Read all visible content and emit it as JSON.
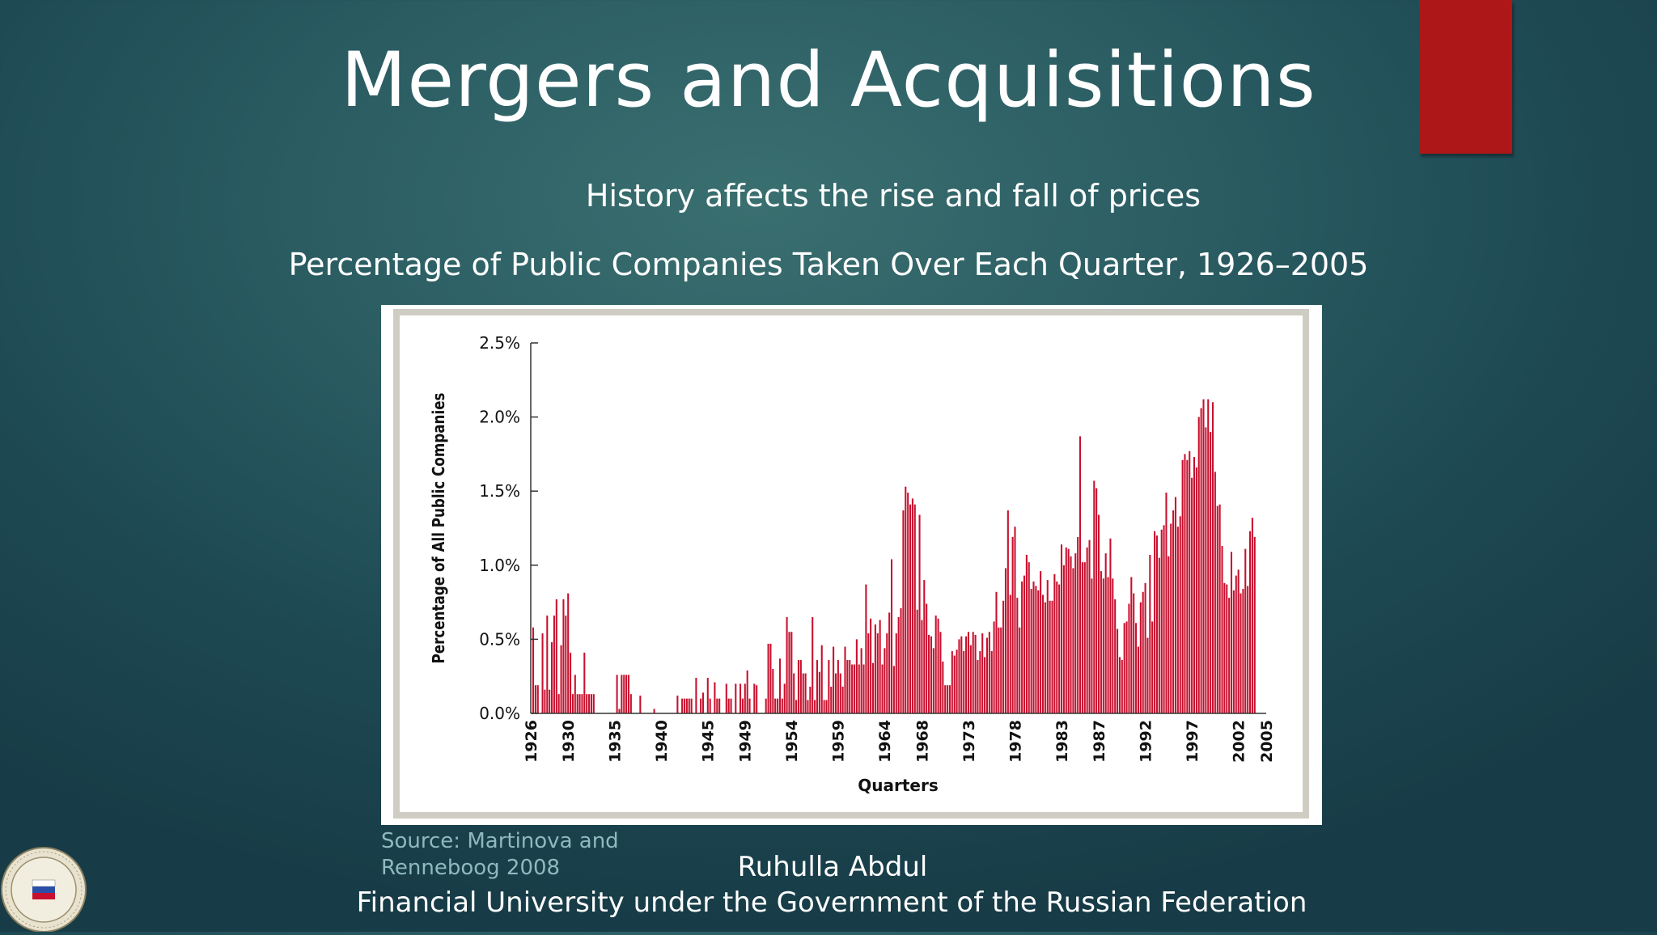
{
  "slide": {
    "title": "Mergers and Acquisitions",
    "subtitle": "History affects the rise and fall of prices",
    "chart_heading": "Percentage of Public Companies Taken Over Each Quarter, 1926–2005",
    "source_label": "Source: ",
    "source_link": "Martinova and Renneboog 2008",
    "author": "Ruhulla Abdul",
    "institution": "Financial University under the Government of the Russian Federation",
    "accent_color": "#ae1717",
    "logo_icon": "university-seal-icon"
  },
  "chart_data": {
    "type": "bar",
    "title": "",
    "xlabel": "Quarters",
    "ylabel": "Percentage of All Public Companies",
    "ylim": [
      0,
      2.5
    ],
    "y_ticks": [
      "0.0%",
      "0.5%",
      "1.0%",
      "1.5%",
      "2.0%",
      "2.5%"
    ],
    "x_ticks": [
      "1926",
      "1930",
      "1935",
      "1940",
      "1945",
      "1949",
      "1954",
      "1959",
      "1964",
      "1968",
      "1973",
      "1978",
      "1983",
      "1987",
      "1992",
      "1997",
      "2002",
      "2005"
    ],
    "grid": false,
    "bar_color": "#c8102e",
    "x_start_year": 1926,
    "quarter_values": [
      0.58,
      0.19,
      0.19,
      0.0,
      0.54,
      0.16,
      0.66,
      0.16,
      0.48,
      0.66,
      0.77,
      0.13,
      0.46,
      0.77,
      0.66,
      0.81,
      0.41,
      0.13,
      0.26,
      0.13,
      0.13,
      0.13,
      0.41,
      0.13,
      0.13,
      0.13,
      0.13,
      0.0,
      0.0,
      0.0,
      0.0,
      0.0,
      0.0,
      0.0,
      0.0,
      0.0,
      0.26,
      0.03,
      0.26,
      0.26,
      0.26,
      0.26,
      0.13,
      0.0,
      0.0,
      0.0,
      0.12,
      0.0,
      0.0,
      0.0,
      0.0,
      0.0,
      0.03,
      0.0,
      0.0,
      0.0,
      0.0,
      0.0,
      0.0,
      0.0,
      0.0,
      0.0,
      0.12,
      0.0,
      0.1,
      0.1,
      0.1,
      0.1,
      0.1,
      0.0,
      0.24,
      0.0,
      0.1,
      0.14,
      0.0,
      0.24,
      0.1,
      0.0,
      0.21,
      0.1,
      0.1,
      0.0,
      0.0,
      0.2,
      0.1,
      0.1,
      0.0,
      0.2,
      0.0,
      0.2,
      0.1,
      0.2,
      0.29,
      0.1,
      0.0,
      0.2,
      0.19,
      0.0,
      0.0,
      0.0,
      0.1,
      0.47,
      0.47,
      0.3,
      0.1,
      0.1,
      0.37,
      0.1,
      0.2,
      0.65,
      0.55,
      0.55,
      0.27,
      0.09,
      0.36,
      0.36,
      0.27,
      0.27,
      0.09,
      0.18,
      0.65,
      0.09,
      0.36,
      0.28,
      0.46,
      0.09,
      0.09,
      0.36,
      0.18,
      0.45,
      0.27,
      0.36,
      0.27,
      0.18,
      0.45,
      0.36,
      0.36,
      0.33,
      0.33,
      0.5,
      0.33,
      0.44,
      0.33,
      0.87,
      0.54,
      0.64,
      0.34,
      0.6,
      0.54,
      0.63,
      0.33,
      0.44,
      0.54,
      0.68,
      1.04,
      0.32,
      0.54,
      0.65,
      0.71,
      1.37,
      1.53,
      1.49,
      1.41,
      1.45,
      1.41,
      0.7,
      1.34,
      0.63,
      0.9,
      0.74,
      0.53,
      0.52,
      0.44,
      0.66,
      0.64,
      0.55,
      0.35,
      0.19,
      0.19,
      0.19,
      0.42,
      0.39,
      0.43,
      0.5,
      0.52,
      0.42,
      0.52,
      0.55,
      0.46,
      0.55,
      0.53,
      0.36,
      0.42,
      0.54,
      0.38,
      0.51,
      0.55,
      0.42,
      0.62,
      0.82,
      0.58,
      0.58,
      0.76,
      0.98,
      1.37,
      0.8,
      1.19,
      1.26,
      0.78,
      0.58,
      0.89,
      0.93,
      1.07,
      1.02,
      0.84,
      0.89,
      0.86,
      0.83,
      0.96,
      0.8,
      0.75,
      0.9,
      0.76,
      0.76,
      0.94,
      0.89,
      0.87,
      1.14,
      1.0,
      1.12,
      1.11,
      1.06,
      0.98,
      1.08,
      1.19,
      1.87,
      1.02,
      1.02,
      1.12,
      1.17,
      0.91,
      1.57,
      1.52,
      1.34,
      0.96,
      0.91,
      1.08,
      0.92,
      1.18,
      0.91,
      0.77,
      0.57,
      0.38,
      0.36,
      0.61,
      0.62,
      0.74,
      0.92,
      0.81,
      0.61,
      0.45,
      0.75,
      0.82,
      0.88,
      0.51,
      1.07,
      0.62,
      1.23,
      1.2,
      1.05,
      1.24,
      1.27,
      1.49,
      1.06,
      1.28,
      1.37,
      1.46,
      1.26,
      1.33,
      1.71,
      1.75,
      1.71,
      1.77,
      1.59,
      1.73,
      1.66,
      2.0,
      2.06,
      2.12,
      1.93,
      2.12,
      1.9,
      2.1,
      1.63,
      1.4,
      1.41,
      1.13,
      0.88,
      0.87,
      0.78,
      1.09,
      0.83,
      0.93,
      0.97,
      0.81,
      0.84,
      1.11,
      0.86,
      1.23,
      1.32,
      1.19
    ]
  }
}
